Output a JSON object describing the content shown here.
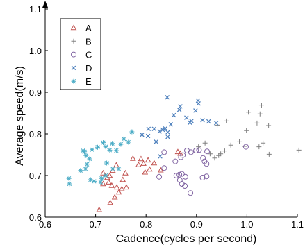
{
  "chart_data": {
    "type": "scatter",
    "xlabel": "Cadence(cycles per second)",
    "ylabel": "Average speed(m/s)",
    "xlim": [
      0.6,
      1.1
    ],
    "ylim": [
      0.6,
      1.1
    ],
    "xticks": [
      "0.6",
      "0.7",
      "0.8",
      "0.9",
      "1.0",
      "1.1"
    ],
    "yticks": [
      "0.6",
      "0.7",
      "0.8",
      "0.9",
      "1.0",
      "1.1"
    ],
    "grid": false,
    "legend_position": "top-left",
    "series": [
      {
        "name": "A",
        "marker": "triangle",
        "color": "#c0504d",
        "points": [
          [
            0.707,
            0.618
          ],
          [
            0.729,
            0.635
          ],
          [
            0.738,
            0.648
          ],
          [
            0.746,
            0.66
          ],
          [
            0.742,
            0.672
          ],
          [
            0.752,
            0.668
          ],
          [
            0.761,
            0.672
          ],
          [
            0.732,
            0.676
          ],
          [
            0.715,
            0.68
          ],
          [
            0.726,
            0.684
          ],
          [
            0.754,
            0.69
          ],
          [
            0.723,
            0.695
          ],
          [
            0.728,
            0.7
          ],
          [
            0.715,
            0.706
          ],
          [
            0.759,
            0.706
          ],
          [
            0.734,
            0.712
          ],
          [
            0.798,
            0.708
          ],
          [
            0.829,
            0.713
          ],
          [
            0.807,
            0.715
          ],
          [
            0.741,
            0.725
          ],
          [
            0.785,
            0.726
          ],
          [
            0.795,
            0.729
          ],
          [
            0.816,
            0.73
          ],
          [
            0.804,
            0.737
          ],
          [
            0.774,
            0.741
          ],
          [
            0.79,
            0.74
          ],
          [
            0.868,
            0.753
          ],
          [
            0.863,
            0.757
          ]
        ]
      },
      {
        "name": "B",
        "marker": "plus",
        "color": "#808080",
        "points": [
          [
            0.904,
            0.769
          ],
          [
            0.917,
            0.778
          ],
          [
            0.927,
            0.752
          ],
          [
            0.936,
            0.742
          ],
          [
            0.944,
            0.748
          ],
          [
            0.948,
            0.752
          ],
          [
            0.956,
            0.759
          ],
          [
            0.968,
            0.773
          ],
          [
            0.985,
            0.781
          ],
          [
            0.996,
            0.77
          ],
          [
            1.024,
            0.769
          ],
          [
            1.032,
            0.778
          ],
          [
            1.044,
            0.751
          ],
          [
            1.103,
            0.761
          ],
          [
            0.999,
            0.808
          ],
          [
            1.043,
            0.82
          ],
          [
            1.02,
            0.826
          ],
          [
            1.026,
            0.848
          ],
          [
            1.003,
            0.852
          ],
          [
            1.029,
            0.869
          ],
          [
            0.96,
            0.831
          ],
          [
            0.941,
            0.821
          ]
        ]
      },
      {
        "name": "C",
        "marker": "circle",
        "color": "#8064a2",
        "points": [
          [
            0.836,
            0.756
          ],
          [
            0.858,
            0.734
          ],
          [
            0.869,
            0.744
          ],
          [
            0.873,
            0.749
          ],
          [
            0.881,
            0.76
          ],
          [
            0.889,
            0.756
          ],
          [
            0.899,
            0.76
          ],
          [
            0.905,
            0.761
          ],
          [
            0.913,
            0.742
          ],
          [
            0.916,
            0.734
          ],
          [
            0.921,
            0.758
          ],
          [
            0.92,
            0.728
          ],
          [
            0.92,
            0.698
          ],
          [
            0.912,
            0.695
          ],
          [
            0.878,
            0.697
          ],
          [
            0.866,
            0.702
          ],
          [
            0.871,
            0.704
          ],
          [
            0.877,
            0.675
          ],
          [
            0.867,
            0.689
          ],
          [
            0.86,
            0.7
          ],
          [
            0.871,
            0.68
          ],
          [
            0.888,
            0.658
          ],
          [
            0.826,
            0.697
          ],
          [
            0.836,
            0.718
          ],
          [
            0.998,
            0.769
          ]
        ]
      },
      {
        "name": "D",
        "marker": "x",
        "color": "#4f81bd",
        "points": [
          [
            0.805,
            0.812
          ],
          [
            0.816,
            0.812
          ],
          [
            0.827,
            0.806
          ],
          [
            0.804,
            0.795
          ],
          [
            0.82,
            0.781
          ],
          [
            0.833,
            0.81
          ],
          [
            0.838,
            0.813
          ],
          [
            0.843,
            0.793
          ],
          [
            0.843,
            0.804
          ],
          [
            0.849,
            0.823
          ],
          [
            0.855,
            0.845
          ],
          [
            0.866,
            0.858
          ],
          [
            0.868,
            0.866
          ],
          [
            0.88,
            0.839
          ],
          [
            0.887,
            0.827
          ],
          [
            0.89,
            0.831
          ],
          [
            0.898,
            0.856
          ],
          [
            0.904,
            0.873
          ],
          [
            0.903,
            0.88
          ],
          [
            0.912,
            0.833
          ],
          [
            0.924,
            0.83
          ],
          [
            0.939,
            0.826
          ],
          [
            0.842,
            0.888
          ],
          [
            0.792,
            0.798
          ],
          [
            0.828,
            0.746
          ]
        ]
      },
      {
        "name": "E",
        "marker": "asterisk",
        "color": "#4bacc6",
        "points": [
          [
            0.648,
            0.68
          ],
          [
            0.647,
            0.693
          ],
          [
            0.67,
            0.712
          ],
          [
            0.68,
            0.716
          ],
          [
            0.683,
            0.727
          ],
          [
            0.688,
            0.74
          ],
          [
            0.681,
            0.748
          ],
          [
            0.678,
            0.757
          ],
          [
            0.675,
            0.76
          ],
          [
            0.693,
            0.762
          ],
          [
            0.704,
            0.768
          ],
          [
            0.72,
            0.769
          ],
          [
            0.715,
            0.779
          ],
          [
            0.733,
            0.777
          ],
          [
            0.75,
            0.775
          ],
          [
            0.756,
            0.788
          ],
          [
            0.741,
            0.76
          ],
          [
            0.728,
            0.761
          ],
          [
            0.722,
            0.73
          ],
          [
            0.734,
            0.716
          ],
          [
            0.746,
            0.716
          ],
          [
            0.72,
            0.7
          ],
          [
            0.712,
            0.693
          ],
          [
            0.69,
            0.69
          ],
          [
            0.71,
            0.684
          ],
          [
            0.697,
            0.686
          ],
          [
            0.765,
            0.78
          ],
          [
            0.772,
            0.805
          ]
        ]
      }
    ]
  }
}
